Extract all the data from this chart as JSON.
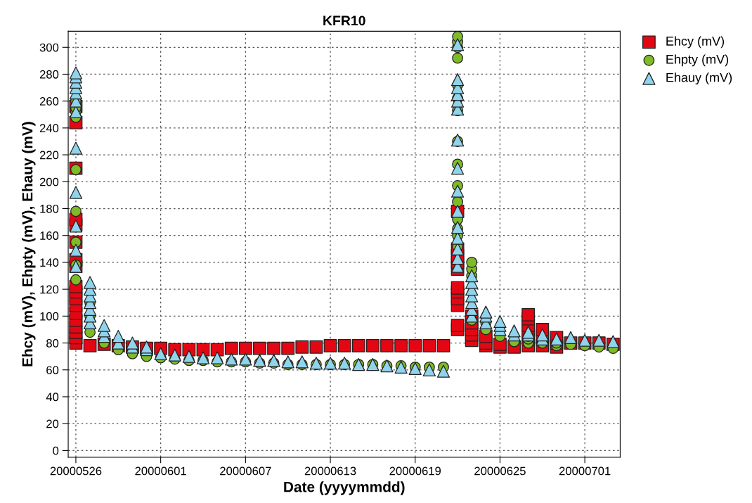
{
  "chart_data": {
    "type": "scatter",
    "title": "KFR10",
    "xlabel": "Date (yyyymmdd)",
    "ylabel": "Ehcy (mV), Ehpty (mV), Ehauy (mV)",
    "xlim": [
      "2000-05-25T11:00",
      "2000-07-03T12:00"
    ],
    "xticks": [
      {
        "value": "2000-05-26",
        "label": "20000526"
      },
      {
        "value": "2000-06-01",
        "label": "20000601"
      },
      {
        "value": "2000-06-07",
        "label": "20000607"
      },
      {
        "value": "2000-06-13",
        "label": "20000613"
      },
      {
        "value": "2000-06-19",
        "label": "20000619"
      },
      {
        "value": "2000-06-25",
        "label": "20000625"
      },
      {
        "value": "2000-07-01",
        "label": "20000701"
      }
    ],
    "ylim": [
      -5,
      312
    ],
    "yticks": [
      0,
      20,
      40,
      60,
      80,
      100,
      120,
      140,
      160,
      180,
      200,
      220,
      240,
      260,
      280,
      300
    ],
    "grid": true,
    "legend": "top right",
    "series": [
      {
        "name": "Ehcy (mV)",
        "color": "#e30613",
        "marker": "square",
        "x": [
          "2000-05-26",
          "2000-05-26",
          "2000-05-26",
          "2000-05-26",
          "2000-05-26",
          "2000-05-26",
          "2000-05-26",
          "2000-05-26",
          "2000-05-26",
          "2000-05-26",
          "2000-05-26",
          "2000-05-26",
          "2000-05-26",
          "2000-05-26",
          "2000-05-26",
          "2000-05-26",
          "2000-05-26",
          "2000-05-26",
          "2000-05-27",
          "2000-05-28",
          "2000-05-29",
          "2000-05-30",
          "2000-05-31",
          "2000-06-01",
          "2000-06-02",
          "2000-06-03",
          "2000-06-04",
          "2000-06-05",
          "2000-06-06",
          "2000-06-07",
          "2000-06-08",
          "2000-06-09",
          "2000-06-10",
          "2000-06-11",
          "2000-06-12",
          "2000-06-13",
          "2000-06-14",
          "2000-06-15",
          "2000-06-16",
          "2000-06-17",
          "2000-06-18",
          "2000-06-19",
          "2000-06-20",
          "2000-06-21",
          "2000-06-22",
          "2000-06-22",
          "2000-06-22",
          "2000-06-22",
          "2000-06-22",
          "2000-06-22",
          "2000-06-22",
          "2000-06-22",
          "2000-06-22",
          "2000-06-22",
          "2000-06-22",
          "2000-06-23",
          "2000-06-23",
          "2000-06-23",
          "2000-06-23",
          "2000-06-23",
          "2000-06-24",
          "2000-06-24",
          "2000-06-24",
          "2000-06-25",
          "2000-06-25",
          "2000-06-26",
          "2000-06-27",
          "2000-06-27",
          "2000-06-27",
          "2000-06-27",
          "2000-06-27",
          "2000-06-27",
          "2000-06-28",
          "2000-06-28",
          "2000-06-28",
          "2000-06-29",
          "2000-06-29",
          "2000-06-29",
          "2000-06-30",
          "2000-07-01",
          "2000-07-02",
          "2000-07-03"
        ],
        "values": [
          80,
          84,
          88,
          92,
          97,
          102,
          108,
          113,
          118,
          122,
          137,
          142,
          155,
          168,
          172,
          210,
          244,
          256,
          78,
          79,
          78,
          77,
          76,
          76,
          75,
          75,
          75,
          75,
          76,
          76,
          76,
          76,
          76,
          77,
          77,
          78,
          78,
          78,
          78,
          78,
          78,
          78,
          78,
          78,
          90,
          93,
          108,
          113,
          118,
          121,
          135,
          140,
          145,
          150,
          178,
          82,
          86,
          90,
          95,
          100,
          78,
          80,
          85,
          77,
          79,
          77,
          78,
          83,
          88,
          93,
          98,
          101,
          78,
          85,
          90,
          77,
          80,
          84,
          80,
          80,
          80,
          79
        ]
      },
      {
        "name": "Ehpty (mV)",
        "color": "#7fba27",
        "marker": "circle",
        "x": [
          "2000-05-26",
          "2000-05-26",
          "2000-05-26",
          "2000-05-26",
          "2000-05-26",
          "2000-05-26",
          "2000-05-26",
          "2000-05-26",
          "2000-05-26",
          "2000-05-27",
          "2000-05-27",
          "2000-05-27",
          "2000-05-28",
          "2000-05-29",
          "2000-05-30",
          "2000-05-31",
          "2000-06-01",
          "2000-06-02",
          "2000-06-03",
          "2000-06-04",
          "2000-06-05",
          "2000-06-06",
          "2000-06-07",
          "2000-06-08",
          "2000-06-09",
          "2000-06-10",
          "2000-06-11",
          "2000-06-12",
          "2000-06-13",
          "2000-06-14",
          "2000-06-15",
          "2000-06-16",
          "2000-06-17",
          "2000-06-18",
          "2000-06-19",
          "2000-06-20",
          "2000-06-21",
          "2000-06-22",
          "2000-06-22",
          "2000-06-22",
          "2000-06-22",
          "2000-06-22",
          "2000-06-22",
          "2000-06-22",
          "2000-06-22",
          "2000-06-22",
          "2000-06-22",
          "2000-06-22",
          "2000-06-22",
          "2000-06-22",
          "2000-06-22",
          "2000-06-22",
          "2000-06-23",
          "2000-06-23",
          "2000-06-23",
          "2000-06-23",
          "2000-06-24",
          "2000-06-24",
          "2000-06-25",
          "2000-06-26",
          "2000-06-27",
          "2000-06-27",
          "2000-06-27",
          "2000-06-28",
          "2000-06-29",
          "2000-06-29",
          "2000-06-30",
          "2000-07-01",
          "2000-07-02",
          "2000-07-03"
        ],
        "values": [
          127,
          138,
          155,
          178,
          209,
          248,
          252,
          255,
          260,
          88,
          100,
          110,
          80,
          75,
          72,
          70,
          69,
          68,
          67,
          67,
          66,
          66,
          66,
          65,
          65,
          64,
          64,
          64,
          64,
          64,
          64,
          64,
          63,
          63,
          62,
          62,
          62,
          152,
          160,
          165,
          172,
          185,
          197,
          213,
          230,
          253,
          262,
          272,
          292,
          300,
          304,
          308,
          97,
          130,
          135,
          140,
          90,
          95,
          85,
          81,
          80,
          83,
          85,
          80,
          78,
          80,
          79,
          78,
          77,
          76
        ]
      },
      {
        "name": "Ehauy (mV)",
        "color": "#8fd3ec",
        "marker": "triangle",
        "x": [
          "2000-05-26",
          "2000-05-26",
          "2000-05-26",
          "2000-05-26",
          "2000-05-26",
          "2000-05-26",
          "2000-05-26",
          "2000-05-26",
          "2000-05-26",
          "2000-05-26",
          "2000-05-26",
          "2000-05-26",
          "2000-05-27",
          "2000-05-27",
          "2000-05-27",
          "2000-05-27",
          "2000-05-27",
          "2000-05-27",
          "2000-05-27",
          "2000-05-28",
          "2000-05-28",
          "2000-05-28",
          "2000-05-29",
          "2000-05-29",
          "2000-05-30",
          "2000-05-30",
          "2000-05-31",
          "2000-05-31",
          "2000-06-01",
          "2000-06-02",
          "2000-06-03",
          "2000-06-04",
          "2000-06-05",
          "2000-06-06",
          "2000-06-07",
          "2000-06-08",
          "2000-06-09",
          "2000-06-10",
          "2000-06-11",
          "2000-06-12",
          "2000-06-13",
          "2000-06-14",
          "2000-06-15",
          "2000-06-16",
          "2000-06-17",
          "2000-06-18",
          "2000-06-19",
          "2000-06-20",
          "2000-06-21",
          "2000-06-22",
          "2000-06-22",
          "2000-06-22",
          "2000-06-22",
          "2000-06-22",
          "2000-06-22",
          "2000-06-22",
          "2000-06-22",
          "2000-06-22",
          "2000-06-22",
          "2000-06-22",
          "2000-06-22",
          "2000-06-22",
          "2000-06-22",
          "2000-06-22",
          "2000-06-23",
          "2000-06-23",
          "2000-06-23",
          "2000-06-23",
          "2000-06-23",
          "2000-06-23",
          "2000-06-23",
          "2000-06-24",
          "2000-06-24",
          "2000-06-24",
          "2000-06-25",
          "2000-06-25",
          "2000-06-25",
          "2000-06-26",
          "2000-06-26",
          "2000-06-27",
          "2000-06-27",
          "2000-06-28",
          "2000-06-28",
          "2000-06-29",
          "2000-06-30",
          "2000-07-01",
          "2000-07-02",
          "2000-07-03"
        ],
        "values": [
          137,
          149,
          167,
          192,
          225,
          252,
          260,
          266,
          270,
          274,
          278,
          281,
          95,
          100,
          105,
          110,
          115,
          120,
          125,
          85,
          89,
          93,
          80,
          85,
          77,
          80,
          75,
          77,
          72,
          71,
          70,
          69,
          69,
          68,
          68,
          67,
          67,
          66,
          66,
          65,
          65,
          65,
          64,
          64,
          63,
          62,
          61,
          60,
          59,
          137,
          143,
          150,
          158,
          166,
          178,
          193,
          210,
          231,
          254,
          260,
          265,
          270,
          276,
          302,
          100,
          105,
          110,
          115,
          120,
          125,
          130,
          95,
          100,
          103,
          90,
          93,
          96,
          86,
          89,
          86,
          88,
          83,
          86,
          83,
          84,
          82,
          82,
          81
        ]
      }
    ]
  }
}
